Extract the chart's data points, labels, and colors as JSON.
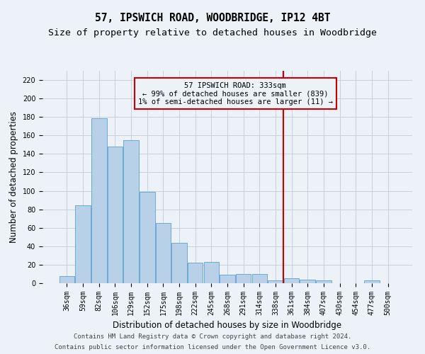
{
  "title": "57, IPSWICH ROAD, WOODBRIDGE, IP12 4BT",
  "subtitle": "Size of property relative to detached houses in Woodbridge",
  "xlabel": "Distribution of detached houses by size in Woodbridge",
  "ylabel": "Number of detached properties",
  "footnote1": "Contains HM Land Registry data © Crown copyright and database right 2024.",
  "footnote2": "Contains public sector information licensed under the Open Government Licence v3.0.",
  "bar_labels": [
    "36sqm",
    "59sqm",
    "82sqm",
    "106sqm",
    "129sqm",
    "152sqm",
    "175sqm",
    "198sqm",
    "222sqm",
    "245sqm",
    "268sqm",
    "291sqm",
    "314sqm",
    "338sqm",
    "361sqm",
    "384sqm",
    "407sqm",
    "430sqm",
    "454sqm",
    "477sqm",
    "500sqm"
  ],
  "bar_values": [
    8,
    84,
    179,
    148,
    155,
    99,
    65,
    44,
    22,
    23,
    9,
    10,
    10,
    3,
    5,
    4,
    3,
    0,
    0,
    3,
    0
  ],
  "bar_color": "#b8d0e8",
  "bar_edge_color": "#6aaad4",
  "ylim": [
    0,
    230
  ],
  "yticks": [
    0,
    20,
    40,
    60,
    80,
    100,
    120,
    140,
    160,
    180,
    200,
    220
  ],
  "vline_x": 13.5,
  "vline_color": "#cc0000",
  "annotation_text": "57 IPSWICH ROAD: 333sqm\n← 99% of detached houses are smaller (839)\n1% of semi-detached houses are larger (11) →",
  "bg_color": "#edf2f9",
  "grid_color": "#c8d0de",
  "title_fontsize": 10.5,
  "subtitle_fontsize": 9.5,
  "axis_label_fontsize": 8.5,
  "tick_fontsize": 7,
  "footnote_fontsize": 6.5
}
